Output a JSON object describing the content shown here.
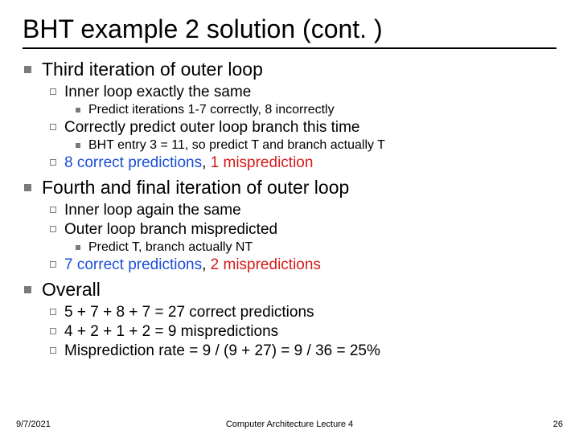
{
  "title": "BHT example 2 solution (cont. )",
  "b1": "Third iteration of outer loop",
  "b1_1": "Inner loop exactly the same",
  "b1_1_1": "Predict iterations 1-7 correctly, 8 incorrectly",
  "b1_2": "Correctly predict outer loop branch this time",
  "b1_2_1": "BHT entry 3 = 11, so predict T and branch actually T",
  "b1_3a": "8 correct predictions",
  "b1_3b": ", ",
  "b1_3c": "1 misprediction",
  "b2": "Fourth and final iteration of outer loop",
  "b2_1": "Inner loop again the same",
  "b2_2": "Outer loop branch mispredicted",
  "b2_2_1": "Predict T, branch actually NT",
  "b2_3a": "7 correct predictions",
  "b2_3b": ", ",
  "b2_3c": "2 mispredictions",
  "b3": "Overall",
  "b3_1": "5 + 7 + 8 + 7 = 27 correct predictions",
  "b3_2": "4 + 2 + 1 + 2 = 9 mispredictions",
  "b3_3": "Misprediction rate = 9 / (9 + 27) = 9 / 36 = 25%",
  "footer_date": "9/7/2021",
  "footer_center": "Computer Architecture Lecture 4",
  "footer_num": "26"
}
